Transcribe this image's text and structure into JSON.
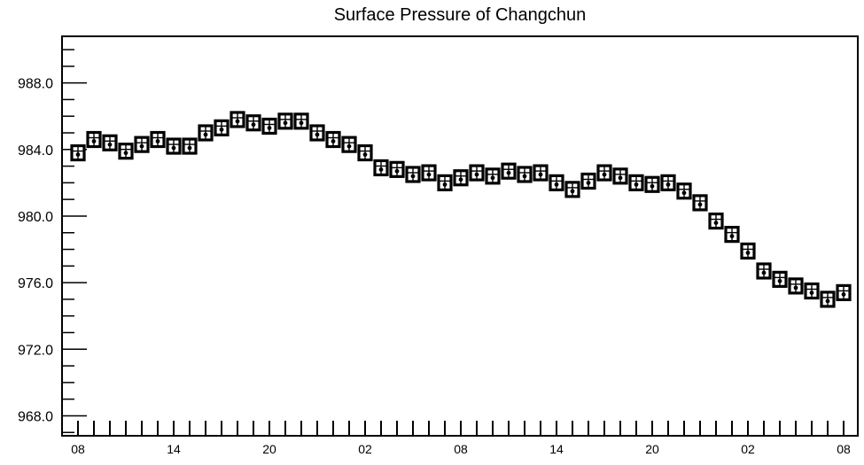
{
  "chart_data": {
    "type": "line",
    "title": "Surface Pressure of Changchun",
    "xlabel": "",
    "ylabel": "",
    "ylim": [
      966.8,
      990.8
    ],
    "y_ticks": [
      968.0,
      972.0,
      976.0,
      980.0,
      984.0,
      988.0
    ],
    "y_tick_labels": [
      "968.0",
      "972.0",
      "976.0",
      "980.0",
      "984.0",
      "988.0"
    ],
    "x_tick_labels": [
      "08",
      "14",
      "20",
      "02",
      "08",
      "14",
      "20",
      "02",
      "08"
    ],
    "x_label_every_hours": 6,
    "x_step_hours": 1,
    "grid": false,
    "legend": "none",
    "marker": "boxed-whisker",
    "series": [
      {
        "values": [
          983.8,
          984.6,
          984.4,
          983.9,
          984.3,
          984.6,
          984.2,
          984.2,
          985.0,
          985.3,
          985.8,
          985.6,
          985.4,
          985.7,
          985.7,
          985.0,
          984.6,
          984.3,
          983.8,
          982.9,
          982.8,
          982.5,
          982.6,
          982.0,
          982.3,
          982.6,
          982.4,
          982.7,
          982.5,
          982.6,
          982.0,
          981.6,
          982.1,
          982.6,
          982.4,
          982.0,
          981.9,
          982.0,
          981.5,
          980.8,
          979.7,
          978.9,
          977.9,
          976.7,
          976.2,
          975.8,
          975.5,
          975.0,
          975.4
        ]
      }
    ]
  }
}
